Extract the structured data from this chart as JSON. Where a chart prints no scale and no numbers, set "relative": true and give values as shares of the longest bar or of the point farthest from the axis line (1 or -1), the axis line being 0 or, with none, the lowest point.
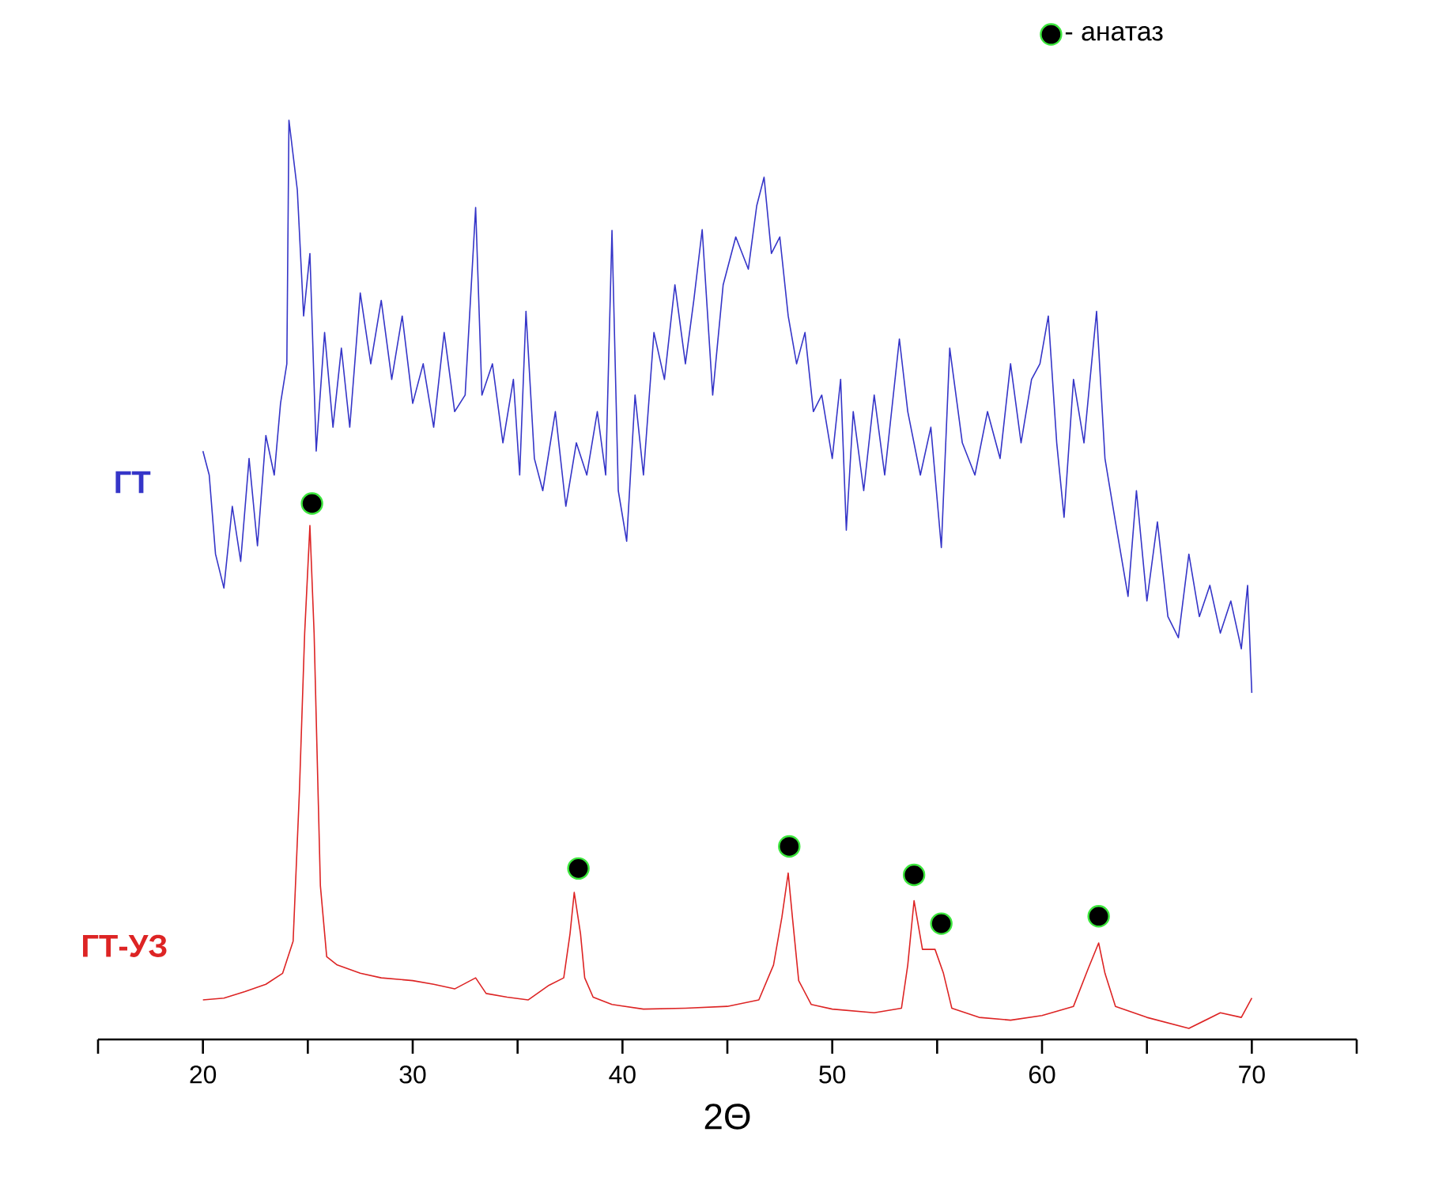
{
  "chart_data": {
    "type": "line",
    "xlabel": "2Θ",
    "relative": true,
    "legend": "top right",
    "xlim": [
      15,
      75
    ],
    "xticks": [
      {
        "value": 15,
        "label": null
      },
      20,
      {
        "value": 25,
        "label": null
      },
      30,
      {
        "value": 35,
        "label": null
      },
      40,
      {
        "value": 45,
        "label": null
      },
      50,
      {
        "value": 55,
        "label": null
      },
      60,
      {
        "value": 65,
        "label": null
      },
      70,
      {
        "value": 75,
        "label": null
      }
    ],
    "series": [
      {
        "name": "ГТ",
        "color": "#3535c8",
        "x": [
          20.0,
          20.3,
          20.6,
          21.0,
          21.4,
          21.8,
          22.2,
          22.6,
          23.0,
          23.4,
          23.7,
          24.0,
          24.1,
          24.5,
          24.8,
          25.1,
          25.4,
          25.8,
          26.2,
          26.6,
          27.0,
          27.5,
          28.0,
          28.5,
          29.0,
          29.5,
          30.0,
          30.5,
          31.0,
          31.5,
          32.0,
          32.5,
          33.0,
          33.3,
          33.8,
          34.3,
          34.8,
          35.1,
          35.4,
          35.8,
          36.2,
          36.8,
          37.3,
          37.8,
          38.3,
          38.8,
          39.2,
          39.5,
          39.8,
          40.2,
          40.6,
          41.0,
          41.5,
          42.0,
          42.5,
          43.0,
          43.4,
          43.8,
          44.3,
          44.8,
          45.4,
          46.0,
          46.4,
          46.75,
          47.1,
          47.5,
          47.9,
          48.3,
          48.7,
          49.1,
          49.5,
          50.0,
          50.4,
          50.67,
          51.0,
          51.5,
          52.0,
          52.5,
          53.2,
          53.6,
          54.2,
          54.7,
          55.2,
          55.6,
          56.2,
          56.8,
          57.4,
          58.0,
          58.5,
          59.0,
          59.5,
          59.9,
          60.3,
          60.7,
          61.05,
          61.5,
          62.0,
          62.6,
          63.0,
          63.5,
          64.1,
          64.5,
          65.0,
          65.5,
          66.0,
          66.5,
          67.0,
          67.5,
          68.0,
          68.5,
          69.0,
          69.5,
          69.8,
          70.0
        ],
        "values": [
          0.64,
          0.614,
          0.528,
          0.491,
          0.58,
          0.52,
          0.632,
          0.537,
          0.657,
          0.614,
          0.692,
          0.735,
          1.0,
          0.924,
          0.787,
          0.855,
          0.64,
          0.769,
          0.666,
          0.752,
          0.666,
          0.812,
          0.735,
          0.804,
          0.718,
          0.787,
          0.692,
          0.735,
          0.666,
          0.769,
          0.683,
          0.701,
          0.905,
          0.701,
          0.735,
          0.649,
          0.718,
          0.614,
          0.792,
          0.632,
          0.597,
          0.683,
          0.58,
          0.649,
          0.614,
          0.683,
          0.614,
          0.88,
          0.597,
          0.542,
          0.701,
          0.614,
          0.769,
          0.718,
          0.821,
          0.735,
          0.804,
          0.881,
          0.701,
          0.821,
          0.873,
          0.838,
          0.907,
          0.938,
          0.855,
          0.873,
          0.787,
          0.735,
          0.769,
          0.683,
          0.701,
          0.632,
          0.718,
          0.554,
          0.683,
          0.597,
          0.701,
          0.614,
          0.762,
          0.683,
          0.614,
          0.666,
          0.535,
          0.752,
          0.649,
          0.614,
          0.683,
          0.632,
          0.735,
          0.649,
          0.718,
          0.735,
          0.787,
          0.649,
          0.568,
          0.718,
          0.649,
          0.792,
          0.632,
          0.563,
          0.482,
          0.597,
          0.477,
          0.563,
          0.46,
          0.437,
          0.528,
          0.46,
          0.494,
          0.442,
          0.477,
          0.425,
          0.494,
          0.377
        ]
      },
      {
        "name": "ГТ-УЗ",
        "color": "#dd2424",
        "x": [
          20.0,
          21.0,
          22.0,
          23.0,
          23.8,
          24.3,
          24.6,
          24.85,
          25.1,
          25.3,
          25.6,
          25.9,
          26.4,
          27.5,
          28.5,
          30.0,
          31.0,
          32.0,
          33.0,
          33.5,
          34.5,
          35.5,
          36.5,
          37.2,
          37.5,
          37.7,
          38.0,
          38.2,
          38.6,
          39.5,
          41.0,
          43.0,
          45.0,
          46.5,
          47.2,
          47.6,
          47.9,
          48.1,
          48.4,
          49.0,
          50.0,
          52.0,
          53.3,
          53.6,
          53.9,
          54.3,
          54.9,
          55.3,
          55.7,
          57.0,
          58.5,
          60.0,
          61.5,
          62.2,
          62.7,
          63.0,
          63.5,
          65.0,
          67.0,
          68.5,
          69.5,
          70.0
        ],
        "values": [
          0.043,
          0.045,
          0.052,
          0.06,
          0.072,
          0.107,
          0.27,
          0.442,
          0.559,
          0.442,
          0.167,
          0.09,
          0.081,
          0.072,
          0.067,
          0.064,
          0.06,
          0.055,
          0.067,
          0.05,
          0.046,
          0.043,
          0.059,
          0.067,
          0.115,
          0.16,
          0.115,
          0.067,
          0.046,
          0.038,
          0.033,
          0.034,
          0.036,
          0.043,
          0.081,
          0.133,
          0.181,
          0.133,
          0.064,
          0.038,
          0.033,
          0.029,
          0.034,
          0.081,
          0.151,
          0.098,
          0.098,
          0.072,
          0.034,
          0.024,
          0.021,
          0.026,
          0.036,
          0.077,
          0.105,
          0.072,
          0.036,
          0.024,
          0.012,
          0.029,
          0.024,
          0.045
        ]
      },
      {
        "name": "- анатаз",
        "type": "scatter",
        "marker": "circle",
        "color": "#000000",
        "x": [
          25.2,
          37.9,
          47.95,
          53.9,
          55.2,
          62.7
        ],
        "values": [
          0.583,
          0.186,
          0.21,
          0.179,
          0.126,
          0.134
        ]
      }
    ]
  }
}
